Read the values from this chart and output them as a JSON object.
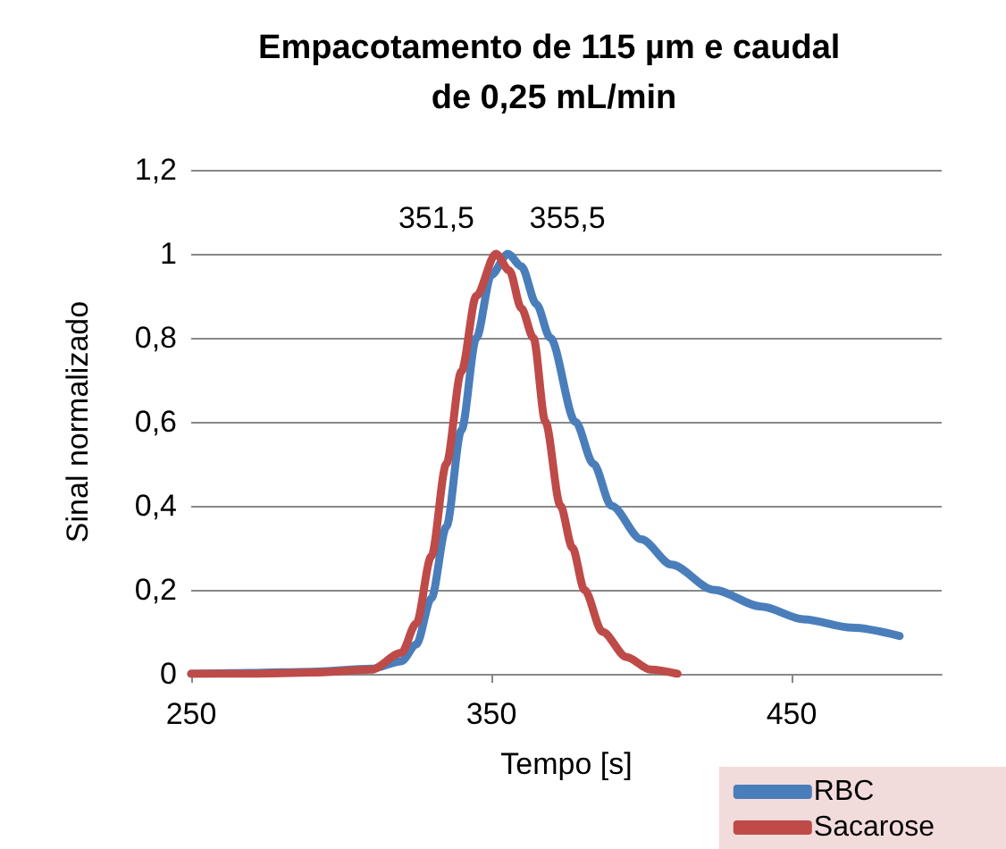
{
  "chart_data": {
    "type": "line",
    "title": "Empacotamento de 115 µm e caudal de 0,25 mL/min",
    "xlabel": "Tempo [s]",
    "ylabel": "Sinal normalizado",
    "xlim": [
      250,
      500
    ],
    "xticks": [
      250,
      350,
      450
    ],
    "ylim": [
      0,
      1.2
    ],
    "yticks": [
      {
        "value": 0,
        "label": "0"
      },
      {
        "value": 0.2,
        "label": "0,2"
      },
      {
        "value": 0.4,
        "label": "0,4"
      },
      {
        "value": 0.6,
        "label": "0,6"
      },
      {
        "value": 0.8,
        "label": "0,8"
      },
      {
        "value": 1,
        "label": "1"
      },
      {
        "value": 1.2,
        "label": "1,2"
      }
    ],
    "grid": "y",
    "legend": "bottom right",
    "marker": "none",
    "line_style": "solid",
    "series": [
      {
        "name": "RBC",
        "color": "#4a7ebb",
        "x": [
          250,
          270,
          290,
          310,
          320,
          325,
          330,
          335,
          340,
          345,
          350,
          355.5,
          360,
          365,
          369.6,
          378,
          384,
          390,
          400,
          410,
          424,
          440,
          454,
          470,
          486
        ],
        "values": [
          0,
          0.002,
          0.005,
          0.012,
          0.03,
          0.07,
          0.18,
          0.35,
          0.58,
          0.8,
          0.95,
          1,
          0.97,
          0.88,
          0.8,
          0.6,
          0.5,
          0.4,
          0.32,
          0.26,
          0.2,
          0.16,
          0.13,
          0.11,
          0.09
        ]
      },
      {
        "name": "Sacarose",
        "color": "#be4b48",
        "x": [
          250,
          270,
          290,
          310,
          320,
          325,
          330,
          335,
          340,
          345,
          351.5,
          356,
          360,
          364,
          368,
          373,
          377,
          381,
          387,
          395,
          403,
          412
        ],
        "values": [
          0,
          0,
          0.003,
          0.01,
          0.05,
          0.12,
          0.28,
          0.5,
          0.72,
          0.9,
          1,
          0.96,
          0.87,
          0.8,
          0.6,
          0.4,
          0.3,
          0.2,
          0.1,
          0.04,
          0.01,
          0
        ]
      }
    ],
    "annotations": [
      {
        "text": "351,5",
        "x": 351.5,
        "y": 1
      },
      {
        "text": "355,5",
        "x": 355.5,
        "y": 1
      }
    ]
  }
}
